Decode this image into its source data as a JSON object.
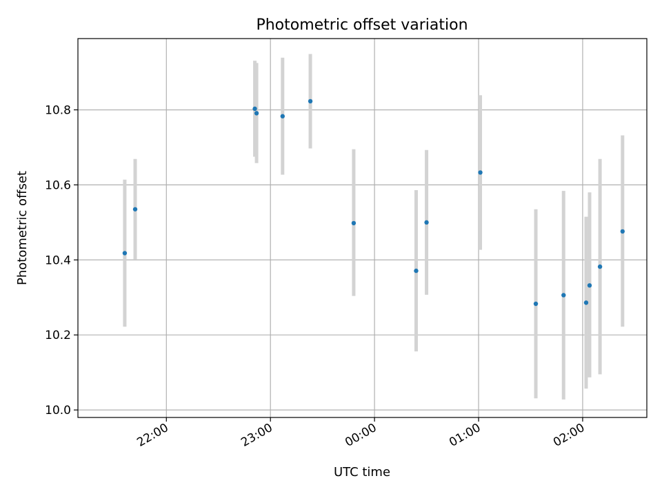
{
  "chart_data": {
    "type": "scatter",
    "title": "Photometric offset variation",
    "xlabel": "UTC time",
    "ylabel": "Photometric offset",
    "x_axis": "time",
    "x_range": [
      "21:09",
      "02:37"
    ],
    "ylim": [
      9.98,
      10.99
    ],
    "yticks": [
      10.0,
      10.2,
      10.4,
      10.6,
      10.8
    ],
    "ytick_labels": [
      "10.0",
      "10.2",
      "10.4",
      "10.6",
      "10.8"
    ],
    "xticks": [
      "22:00",
      "23:00",
      "00:00",
      "01:00",
      "02:00"
    ],
    "xtick_labels": [
      "22:00",
      "23:00",
      "00:00",
      "01:00",
      "02:00"
    ],
    "grid": true,
    "legend": "none",
    "colors": {
      "point": "#1f77b4",
      "errorbar": "#d3d3d3",
      "grid": "#b0b0b0",
      "axes": "#000000"
    },
    "series": [
      {
        "points": [
          {
            "x": "21:36",
            "y": 10.418,
            "ylow": 10.222,
            "yhigh": 10.614
          },
          {
            "x": "21:42",
            "y": 10.535,
            "ylow": 10.402,
            "yhigh": 10.669
          },
          {
            "x": "22:51",
            "y": 10.803,
            "ylow": 10.675,
            "yhigh": 10.931
          },
          {
            "x": "22:52",
            "y": 10.791,
            "ylow": 10.658,
            "yhigh": 10.925
          },
          {
            "x": "23:07",
            "y": 10.783,
            "ylow": 10.627,
            "yhigh": 10.939
          },
          {
            "x": "23:23",
            "y": 10.823,
            "ylow": 10.697,
            "yhigh": 10.949
          },
          {
            "x": "23:48",
            "y": 10.498,
            "ylow": 10.304,
            "yhigh": 10.695
          },
          {
            "x": "00:24",
            "y": 10.371,
            "ylow": 10.156,
            "yhigh": 10.586
          },
          {
            "x": "00:30",
            "y": 10.5,
            "ylow": 10.307,
            "yhigh": 10.693
          },
          {
            "x": "01:01",
            "y": 10.633,
            "ylow": 10.427,
            "yhigh": 10.839
          },
          {
            "x": "01:33",
            "y": 10.283,
            "ylow": 10.031,
            "yhigh": 10.535
          },
          {
            "x": "01:49",
            "y": 10.306,
            "ylow": 10.028,
            "yhigh": 10.584
          },
          {
            "x": "02:02",
            "y": 10.286,
            "ylow": 10.057,
            "yhigh": 10.515
          },
          {
            "x": "02:04",
            "y": 10.332,
            "ylow": 10.087,
            "yhigh": 10.58
          },
          {
            "x": "02:10",
            "y": 10.382,
            "ylow": 10.095,
            "yhigh": 10.669
          },
          {
            "x": "02:23",
            "y": 10.476,
            "ylow": 10.222,
            "yhigh": 10.732
          }
        ]
      }
    ]
  }
}
